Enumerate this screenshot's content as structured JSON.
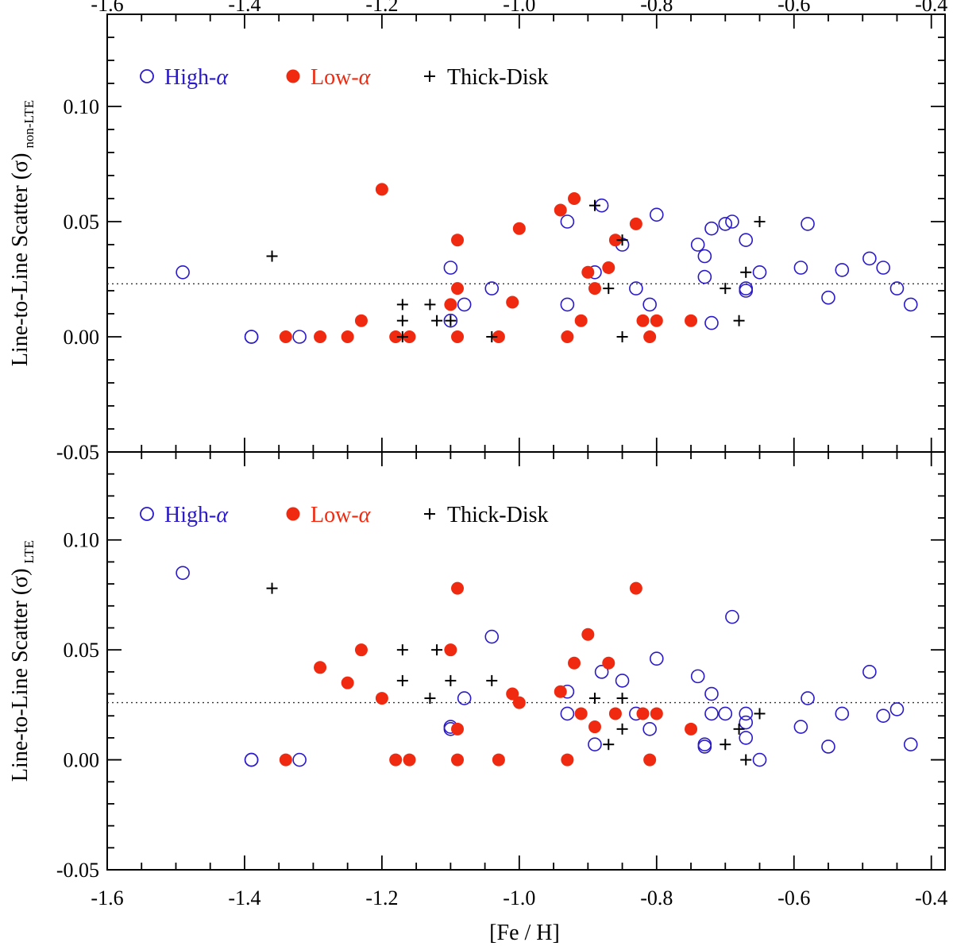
{
  "chart_data": [
    {
      "type": "scatter",
      "panel": "top",
      "ylabel": "Line-to-Line Scatter (σ)",
      "ylabel_subscript": "non-LTE",
      "xlabel": "[Fe / H]",
      "xlim": [
        -1.6,
        -0.38
      ],
      "ylim": [
        -0.05,
        0.14
      ],
      "x_ticks": [
        -1.6,
        -1.4,
        -1.2,
        -1.0,
        -0.8,
        -0.6,
        -0.4
      ],
      "x_tick_labels": [
        "-1.6",
        "-1.4",
        "-1.2",
        "-1.0",
        "-0.8",
        "-0.6",
        "-0.4"
      ],
      "y_ticks": [
        -0.05,
        0.0,
        0.05,
        0.1
      ],
      "y_tick_labels": [
        "-0.05",
        "0.00",
        "0.05",
        "0.10"
      ],
      "reference_line": 0.023,
      "legend": [
        {
          "label": "High-",
          "greek": "α",
          "color": "#2a1ac8",
          "marker": "open-circle"
        },
        {
          "label": "Low-",
          "greek": "α",
          "color": "#f02a10",
          "marker": "filled-circle"
        },
        {
          "label": "Thick-Disk",
          "greek": "",
          "color": "#000000",
          "marker": "plus"
        }
      ],
      "series": [
        {
          "name": "High-α",
          "marker": "open-circle",
          "color": "#2a1ac8",
          "x": [
            -1.49,
            -1.39,
            -1.39,
            -1.32,
            -1.1,
            -1.1,
            -1.08,
            -1.04,
            -0.93,
            -0.93,
            -0.89,
            -0.88,
            -0.85,
            -0.83,
            -0.81,
            -0.8,
            -0.74,
            -0.73,
            -0.73,
            -0.72,
            -0.72,
            -0.7,
            -0.69,
            -0.67,
            -0.67,
            -0.67,
            -0.65,
            -0.59,
            -0.58,
            -0.55,
            -0.53,
            -0.49,
            -0.47,
            -0.45,
            -0.43
          ],
          "y": [
            0.028,
            0.0,
            0.0,
            0.0,
            0.03,
            0.007,
            0.014,
            0.021,
            0.05,
            0.014,
            0.028,
            0.057,
            0.04,
            0.021,
            0.014,
            0.053,
            0.04,
            0.035,
            0.026,
            0.047,
            0.006,
            0.049,
            0.05,
            0.042,
            0.021,
            0.02,
            0.028,
            0.03,
            0.049,
            0.017,
            0.029,
            0.034,
            0.03,
            0.021,
            0.014
          ]
        },
        {
          "name": "Low-α",
          "marker": "filled-circle",
          "color": "#f02a10",
          "x": [
            -1.34,
            -1.29,
            -1.25,
            -1.23,
            -1.2,
            -1.18,
            -1.16,
            -1.1,
            -1.09,
            -1.09,
            -1.09,
            -1.03,
            -1.01,
            -1.0,
            -0.94,
            -0.93,
            -0.92,
            -0.91,
            -0.9,
            -0.89,
            -0.87,
            -0.86,
            -0.83,
            -0.82,
            -0.81,
            -0.8,
            -0.75
          ],
          "y": [
            0.0,
            0.0,
            0.0,
            0.007,
            0.064,
            0.0,
            0.0,
            0.014,
            0.042,
            0.021,
            0.0,
            0.0,
            0.015,
            0.047,
            0.055,
            0.0,
            0.06,
            0.007,
            0.028,
            0.021,
            0.03,
            0.042,
            0.049,
            0.007,
            0.0,
            0.007,
            0.007
          ]
        },
        {
          "name": "Thick-Disk",
          "marker": "plus",
          "color": "#000000",
          "x": [
            -1.36,
            -1.17,
            -1.17,
            -1.17,
            -1.13,
            -1.12,
            -1.1,
            -1.04,
            -0.89,
            -0.87,
            -0.85,
            -0.85,
            -0.7,
            -0.68,
            -0.67,
            -0.65
          ],
          "y": [
            0.035,
            0.014,
            0.007,
            0.0,
            0.014,
            0.007,
            0.007,
            0.0,
            0.057,
            0.021,
            0.042,
            0.0,
            0.021,
            0.007,
            0.028,
            0.05
          ]
        }
      ]
    },
    {
      "type": "scatter",
      "panel": "bottom",
      "ylabel": "Line-to-Line Scatter (σ)",
      "ylabel_subscript": "LTE",
      "xlabel": "[Fe / H]",
      "xlim": [
        -1.6,
        -0.38
      ],
      "ylim": [
        -0.05,
        0.14
      ],
      "x_ticks": [
        -1.6,
        -1.4,
        -1.2,
        -1.0,
        -0.8,
        -0.6,
        -0.4
      ],
      "x_tick_labels": [
        "-1.6",
        "-1.4",
        "-1.2",
        "-1.0",
        "-0.8",
        "-0.6",
        "-0.4"
      ],
      "y_ticks": [
        -0.05,
        0.0,
        0.05,
        0.1
      ],
      "y_tick_labels": [
        "-0.05",
        "0.00",
        "0.05",
        "0.10"
      ],
      "reference_line": 0.026,
      "legend": [
        {
          "label": "High-",
          "greek": "α",
          "color": "#2a1ac8",
          "marker": "open-circle"
        },
        {
          "label": "Low-",
          "greek": "α",
          "color": "#f02a10",
          "marker": "filled-circle"
        },
        {
          "label": "Thick-Disk",
          "greek": "",
          "color": "#000000",
          "marker": "plus"
        }
      ],
      "series": [
        {
          "name": "High-α",
          "marker": "open-circle",
          "color": "#2a1ac8",
          "x": [
            -1.49,
            -1.39,
            -1.39,
            -1.32,
            -1.1,
            -1.1,
            -1.08,
            -1.04,
            -0.93,
            -0.93,
            -0.89,
            -0.88,
            -0.85,
            -0.83,
            -0.81,
            -0.8,
            -0.74,
            -0.73,
            -0.73,
            -0.72,
            -0.72,
            -0.7,
            -0.69,
            -0.67,
            -0.67,
            -0.67,
            -0.65,
            -0.59,
            -0.58,
            -0.55,
            -0.53,
            -0.49,
            -0.47,
            -0.45,
            -0.43
          ],
          "y": [
            0.085,
            0.0,
            0.0,
            0.0,
            0.015,
            0.014,
            0.028,
            0.056,
            0.031,
            0.021,
            0.007,
            0.04,
            0.036,
            0.021,
            0.014,
            0.046,
            0.038,
            0.007,
            0.006,
            0.03,
            0.021,
            0.021,
            0.065,
            0.021,
            0.017,
            0.01,
            0.0,
            0.015,
            0.028,
            0.006,
            0.021,
            0.04,
            0.02,
            0.023,
            0.007
          ]
        },
        {
          "name": "Low-α",
          "marker": "filled-circle",
          "color": "#f02a10",
          "x": [
            -1.34,
            -1.29,
            -1.25,
            -1.23,
            -1.2,
            -1.18,
            -1.16,
            -1.1,
            -1.09,
            -1.09,
            -1.09,
            -1.03,
            -1.01,
            -1.0,
            -0.94,
            -0.93,
            -0.92,
            -0.91,
            -0.9,
            -0.89,
            -0.87,
            -0.86,
            -0.83,
            -0.82,
            -0.81,
            -0.8,
            -0.75
          ],
          "y": [
            0.0,
            0.042,
            0.035,
            0.05,
            0.028,
            0.0,
            0.0,
            0.05,
            0.078,
            0.014,
            0.0,
            0.0,
            0.03,
            0.026,
            0.031,
            0.0,
            0.044,
            0.021,
            0.057,
            0.015,
            0.044,
            0.021,
            0.078,
            0.021,
            0.0,
            0.021,
            0.014
          ]
        },
        {
          "name": "Thick-Disk",
          "marker": "plus",
          "color": "#000000",
          "x": [
            -1.36,
            -1.17,
            -1.17,
            -1.13,
            -1.12,
            -1.1,
            -1.04,
            -0.89,
            -0.87,
            -0.85,
            -0.85,
            -0.7,
            -0.68,
            -0.67,
            -0.65
          ],
          "y": [
            0.078,
            0.05,
            0.036,
            0.028,
            0.05,
            0.036,
            0.036,
            0.028,
            0.007,
            0.028,
            0.014,
            0.007,
            0.014,
            0.0,
            0.021
          ]
        }
      ]
    }
  ]
}
